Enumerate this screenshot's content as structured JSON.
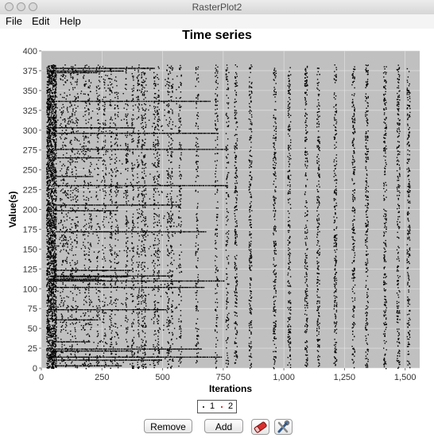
{
  "window": {
    "title": "RasterPlot2"
  },
  "menu": {
    "file": "File",
    "edit": "Edit",
    "help": "Help"
  },
  "chart_data": {
    "type": "scatter",
    "title": "Time series",
    "xlabel": "Iterations",
    "ylabel": "Value(s)",
    "xlim": [
      0,
      1560
    ],
    "ylim": [
      0,
      400
    ],
    "x_ticks": [
      0,
      250,
      500,
      750,
      1000,
      1250,
      1500
    ],
    "x_tick_labels": [
      "0",
      "250",
      "500",
      "750",
      "1,000",
      "1,250",
      "1,500"
    ],
    "y_ticks": [
      0,
      25,
      50,
      75,
      100,
      125,
      150,
      175,
      200,
      225,
      250,
      275,
      300,
      325,
      350,
      375,
      400
    ],
    "y_tick_labels": [
      "0",
      "25",
      "50",
      "75",
      "100",
      "125",
      "150",
      "175",
      "200",
      "225",
      "250",
      "275",
      "300",
      "325",
      "350",
      "375",
      "400"
    ],
    "grid": true,
    "plot_background": "#c0c0c0",
    "gridline_color": "#e6e6e6",
    "point_color": "#000000",
    "neuron_range": [
      0,
      383
    ],
    "dense_segment": [
      20,
      60
    ],
    "sparse_bands": [
      [
        75,
        90
      ],
      [
        90,
        110
      ],
      [
        115,
        130
      ],
      [
        135,
        150
      ],
      [
        170,
        185
      ],
      [
        190,
        205
      ],
      [
        225,
        240
      ],
      [
        250,
        265
      ],
      [
        280,
        290
      ],
      [
        300,
        315
      ],
      [
        345,
        355
      ],
      [
        370,
        380
      ],
      [
        392,
        402
      ],
      [
        410,
        420
      ],
      [
        420,
        430
      ],
      [
        460,
        470
      ],
      [
        475,
        485
      ],
      [
        515,
        528
      ],
      [
        530,
        540
      ]
    ],
    "periodic_bursts": [
      570,
      640,
      720,
      765,
      800,
      860,
      960,
      1020,
      1090,
      1140,
      1210,
      1285,
      1340,
      1415,
      1470,
      1512
    ]
  },
  "page_selector": {
    "pages": [
      "1",
      "2"
    ]
  },
  "buttons": {
    "remove": "Remove",
    "add": "Add"
  },
  "icons": {
    "eraser": "eraser-icon",
    "settings": "settings-tools-icon"
  },
  "colors": {
    "eraser_red": "#d9302f",
    "page_dot_red": "#cc0000"
  }
}
